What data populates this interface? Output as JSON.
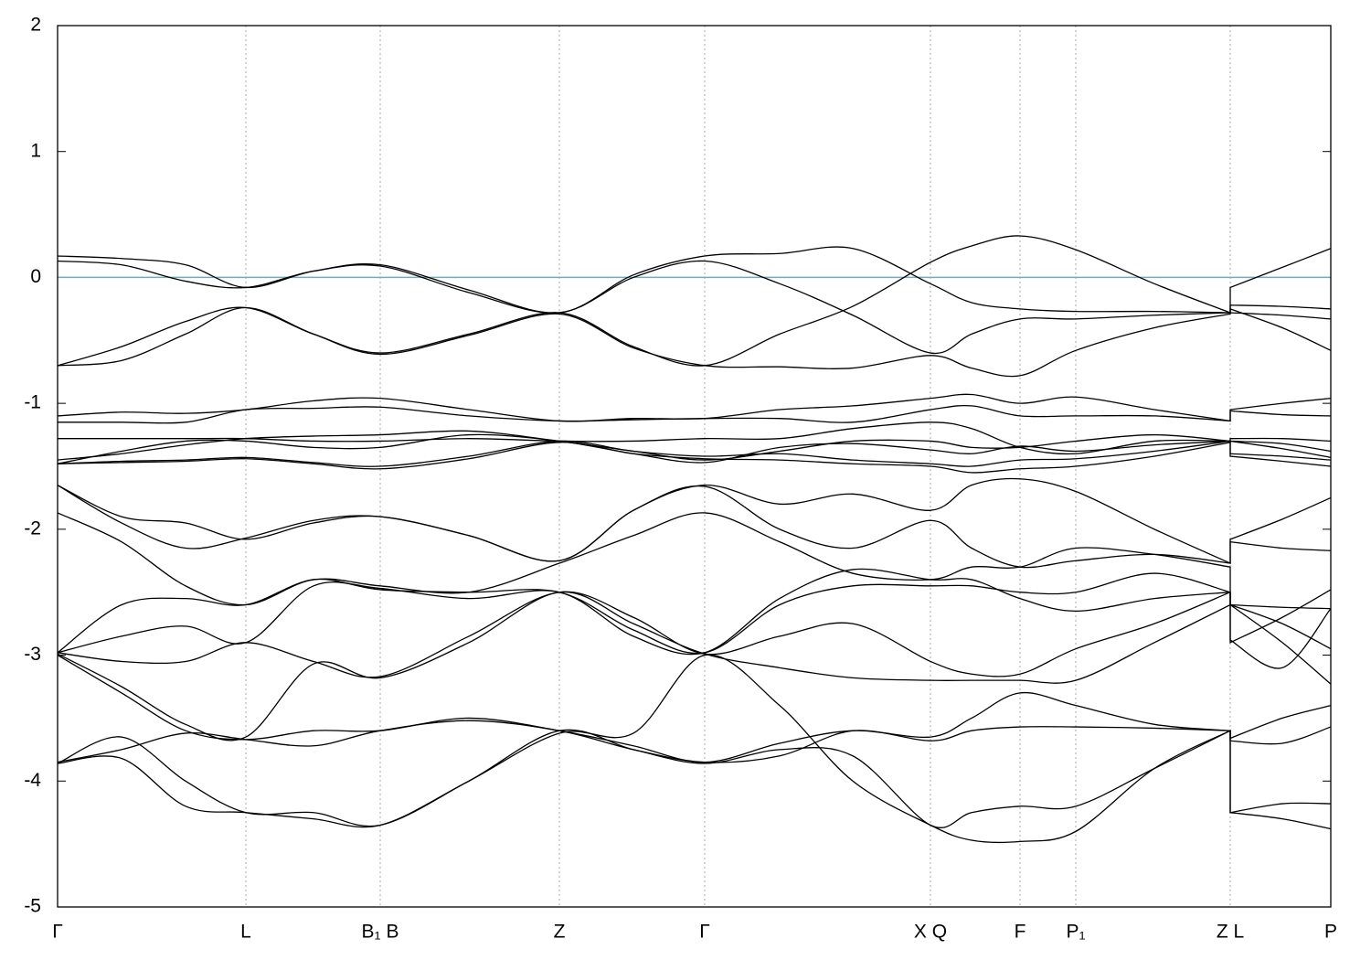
{
  "chart_data": {
    "type": "line",
    "x": [
      0,
      0.7,
      1.4,
      2.06,
      2.8,
      3.53,
      4.5,
      5.49,
      6.3,
      7.08,
      7.9,
      8.7,
      9.55,
      10.0,
      10.53,
      11.14,
      12.0,
      12.83,
      12.83,
      13.4,
      13.93
    ],
    "xlim": [
      0,
      13.93
    ],
    "xticks": [
      {
        "value": 0,
        "label": "Γ"
      },
      {
        "value": 2.06,
        "label": "L"
      },
      {
        "value": 3.53,
        "label": "B₁ B"
      },
      {
        "value": 5.49,
        "label": "Z"
      },
      {
        "value": 7.08,
        "label": "Γ"
      },
      {
        "value": 9.55,
        "label": "X Q"
      },
      {
        "value": 10.53,
        "label": "F"
      },
      {
        "value": 11.14,
        "label": "P₁"
      },
      {
        "value": 12.83,
        "label": "Z L"
      },
      {
        "value": 13.93,
        "label": "P"
      }
    ],
    "ylim": [
      -5,
      2
    ],
    "yticks": [
      -5,
      -4,
      -3,
      -2,
      -1,
      0,
      1,
      2
    ],
    "grid": true,
    "color": "#000000",
    "fermi_level": 0,
    "fermi_color": "#5fb3c8",
    "series": [
      {
        "values": [
          0.17,
          0.15,
          0.1,
          -0.08,
          0.05,
          0.1,
          -0.1,
          -0.28,
          0.02,
          0.17,
          0.19,
          0.23,
          -0.05,
          -0.2,
          -0.25,
          -0.27,
          -0.27,
          -0.28,
          -0.08,
          0.08,
          0.23
        ]
      },
      {
        "values": [
          0.13,
          0.1,
          -0.03,
          -0.08,
          0.05,
          0.09,
          -0.12,
          -0.28,
          0.0,
          0.13,
          -0.05,
          -0.3,
          -0.6,
          -0.45,
          -0.33,
          -0.33,
          -0.3,
          -0.28,
          -0.22,
          -0.23,
          -0.25
        ]
      },
      {
        "values": [
          -0.7,
          -0.55,
          -0.35,
          -0.24,
          -0.45,
          -0.6,
          -0.45,
          -0.28,
          -0.55,
          -0.7,
          -0.45,
          -0.23,
          0.12,
          0.25,
          0.33,
          0.22,
          -0.05,
          -0.28,
          -0.25,
          -0.4,
          -0.58
        ]
      },
      {
        "values": [
          -0.7,
          -0.66,
          -0.45,
          -0.24,
          -0.45,
          -0.61,
          -0.46,
          -0.29,
          -0.56,
          -0.7,
          -0.71,
          -0.72,
          -0.62,
          -0.72,
          -0.78,
          -0.58,
          -0.4,
          -0.29,
          -0.28,
          -0.3,
          -0.33
        ]
      },
      {
        "values": [
          -1.1,
          -1.07,
          -1.08,
          -1.05,
          -0.98,
          -0.96,
          -1.05,
          -1.14,
          -1.12,
          -1.12,
          -1.05,
          -1.02,
          -0.96,
          -0.93,
          -1.0,
          -0.95,
          -1.05,
          -1.14,
          -1.05,
          -1.0,
          -0.96
        ]
      },
      {
        "values": [
          -1.15,
          -1.15,
          -1.15,
          -1.05,
          -1.04,
          -1.03,
          -1.1,
          -1.14,
          -1.13,
          -1.12,
          -1.12,
          -1.15,
          -1.05,
          -1.02,
          -1.1,
          -1.1,
          -1.1,
          -1.14,
          -1.06,
          -1.09,
          -1.1
        ]
      },
      {
        "values": [
          -1.28,
          -1.28,
          -1.28,
          -1.28,
          -1.3,
          -1.3,
          -1.28,
          -1.3,
          -1.3,
          -1.28,
          -1.28,
          -1.2,
          -1.15,
          -1.2,
          -1.35,
          -1.4,
          -1.3,
          -1.3,
          -1.28,
          -1.28,
          -1.3
        ]
      },
      {
        "values": [
          -1.45,
          -1.4,
          -1.33,
          -1.28,
          -1.26,
          -1.25,
          -1.22,
          -1.3,
          -1.38,
          -1.45,
          -1.38,
          -1.3,
          -1.3,
          -1.35,
          -1.35,
          -1.3,
          -1.25,
          -1.3,
          -1.3,
          -1.32,
          -1.38
        ]
      },
      {
        "values": [
          -1.48,
          -1.38,
          -1.3,
          -1.3,
          -1.35,
          -1.35,
          -1.25,
          -1.3,
          -1.4,
          -1.47,
          -1.35,
          -1.32,
          -1.37,
          -1.4,
          -1.34,
          -1.38,
          -1.33,
          -1.3,
          -1.3,
          -1.36,
          -1.43
        ]
      },
      {
        "values": [
          -1.48,
          -1.46,
          -1.45,
          -1.43,
          -1.47,
          -1.5,
          -1.42,
          -1.3,
          -1.38,
          -1.42,
          -1.4,
          -1.45,
          -1.48,
          -1.5,
          -1.45,
          -1.44,
          -1.38,
          -1.3,
          -1.4,
          -1.42,
          -1.45
        ]
      },
      {
        "values": [
          -1.48,
          -1.47,
          -1.46,
          -1.44,
          -1.48,
          -1.52,
          -1.44,
          -1.31,
          -1.4,
          -1.44,
          -1.45,
          -1.48,
          -1.5,
          -1.55,
          -1.52,
          -1.5,
          -1.42,
          -1.31,
          -1.42,
          -1.46,
          -1.5
        ]
      },
      {
        "values": [
          -1.65,
          -1.9,
          -1.95,
          -2.08,
          -1.95,
          -1.9,
          -2.05,
          -2.25,
          -1.85,
          -1.65,
          -1.8,
          -1.72,
          -1.85,
          -1.65,
          -1.6,
          -1.7,
          -2.0,
          -2.27,
          -2.08,
          -1.92,
          -1.75
        ]
      },
      {
        "values": [
          -1.65,
          -1.95,
          -2.15,
          -2.07,
          -1.93,
          -1.9,
          -2.05,
          -2.25,
          -1.85,
          -1.66,
          -2.0,
          -2.15,
          -1.93,
          -2.15,
          -2.3,
          -2.25,
          -2.2,
          -2.27,
          -2.1,
          -2.15,
          -2.17
        ]
      },
      {
        "values": [
          -1.87,
          -2.1,
          -2.45,
          -2.6,
          -2.4,
          -2.45,
          -2.5,
          -2.27,
          -2.05,
          -1.87,
          -2.1,
          -2.35,
          -2.4,
          -2.3,
          -2.3,
          -2.15,
          -2.2,
          -2.3,
          -2.6,
          -2.62,
          -2.63
        ]
      },
      {
        "values": [
          -2.98,
          -2.6,
          -2.55,
          -2.6,
          -2.4,
          -2.48,
          -2.5,
          -2.5,
          -2.8,
          -2.98,
          -2.6,
          -2.45,
          -2.45,
          -2.45,
          -2.5,
          -2.5,
          -2.35,
          -2.5,
          -2.6,
          -2.75,
          -2.95
        ]
      },
      {
        "values": [
          -2.98,
          -2.85,
          -2.77,
          -2.9,
          -2.45,
          -2.47,
          -2.55,
          -2.5,
          -2.85,
          -2.98,
          -2.55,
          -2.32,
          -2.4,
          -2.4,
          -2.55,
          -2.65,
          -2.55,
          -2.5,
          -2.6,
          -2.9,
          -3.23
        ]
      },
      {
        "values": [
          -2.98,
          -3.05,
          -3.05,
          -2.9,
          -3.05,
          -3.17,
          -2.85,
          -2.5,
          -2.7,
          -2.99,
          -2.85,
          -2.75,
          -3.05,
          -3.15,
          -3.15,
          -2.95,
          -2.75,
          -2.5,
          -2.9,
          -2.7,
          -2.48
        ]
      },
      {
        "values": [
          -2.99,
          -3.25,
          -3.55,
          -3.65,
          -3.07,
          -3.18,
          -2.9,
          -2.5,
          -2.75,
          -2.99,
          -3.1,
          -3.18,
          -3.2,
          -3.2,
          -3.2,
          -3.2,
          -2.9,
          -2.6,
          -2.88,
          -3.1,
          -2.63
        ]
      },
      {
        "values": [
          -3.0,
          -3.3,
          -3.6,
          -3.67,
          -3.6,
          -3.6,
          -3.5,
          -3.6,
          -3.72,
          -3.85,
          -3.7,
          -3.6,
          -3.65,
          -3.5,
          -3.3,
          -3.4,
          -3.55,
          -3.6,
          -3.66,
          -3.5,
          -3.4
        ]
      },
      {
        "values": [
          -3.85,
          -3.75,
          -3.62,
          -3.67,
          -3.72,
          -3.6,
          -3.52,
          -3.6,
          -3.75,
          -3.85,
          -3.8,
          -3.6,
          -3.68,
          -3.6,
          -3.57,
          -3.57,
          -3.58,
          -3.6,
          -3.68,
          -3.7,
          -3.57
        ]
      },
      {
        "values": [
          -3.86,
          -3.65,
          -4.0,
          -4.25,
          -4.25,
          -4.35,
          -4.0,
          -3.6,
          -3.75,
          -3.86,
          -3.75,
          -3.8,
          -4.35,
          -4.25,
          -4.2,
          -4.2,
          -3.9,
          -3.6,
          -4.25,
          -4.18,
          -4.18
        ]
      },
      {
        "values": [
          -3.86,
          -3.82,
          -4.2,
          -4.25,
          -4.3,
          -4.35,
          -4.0,
          -3.62,
          -3.62,
          -3.0,
          -3.4,
          -4.0,
          -4.35,
          -4.47,
          -4.48,
          -4.4,
          -3.9,
          -3.6,
          -4.25,
          -4.3,
          -4.38
        ]
      }
    ]
  }
}
